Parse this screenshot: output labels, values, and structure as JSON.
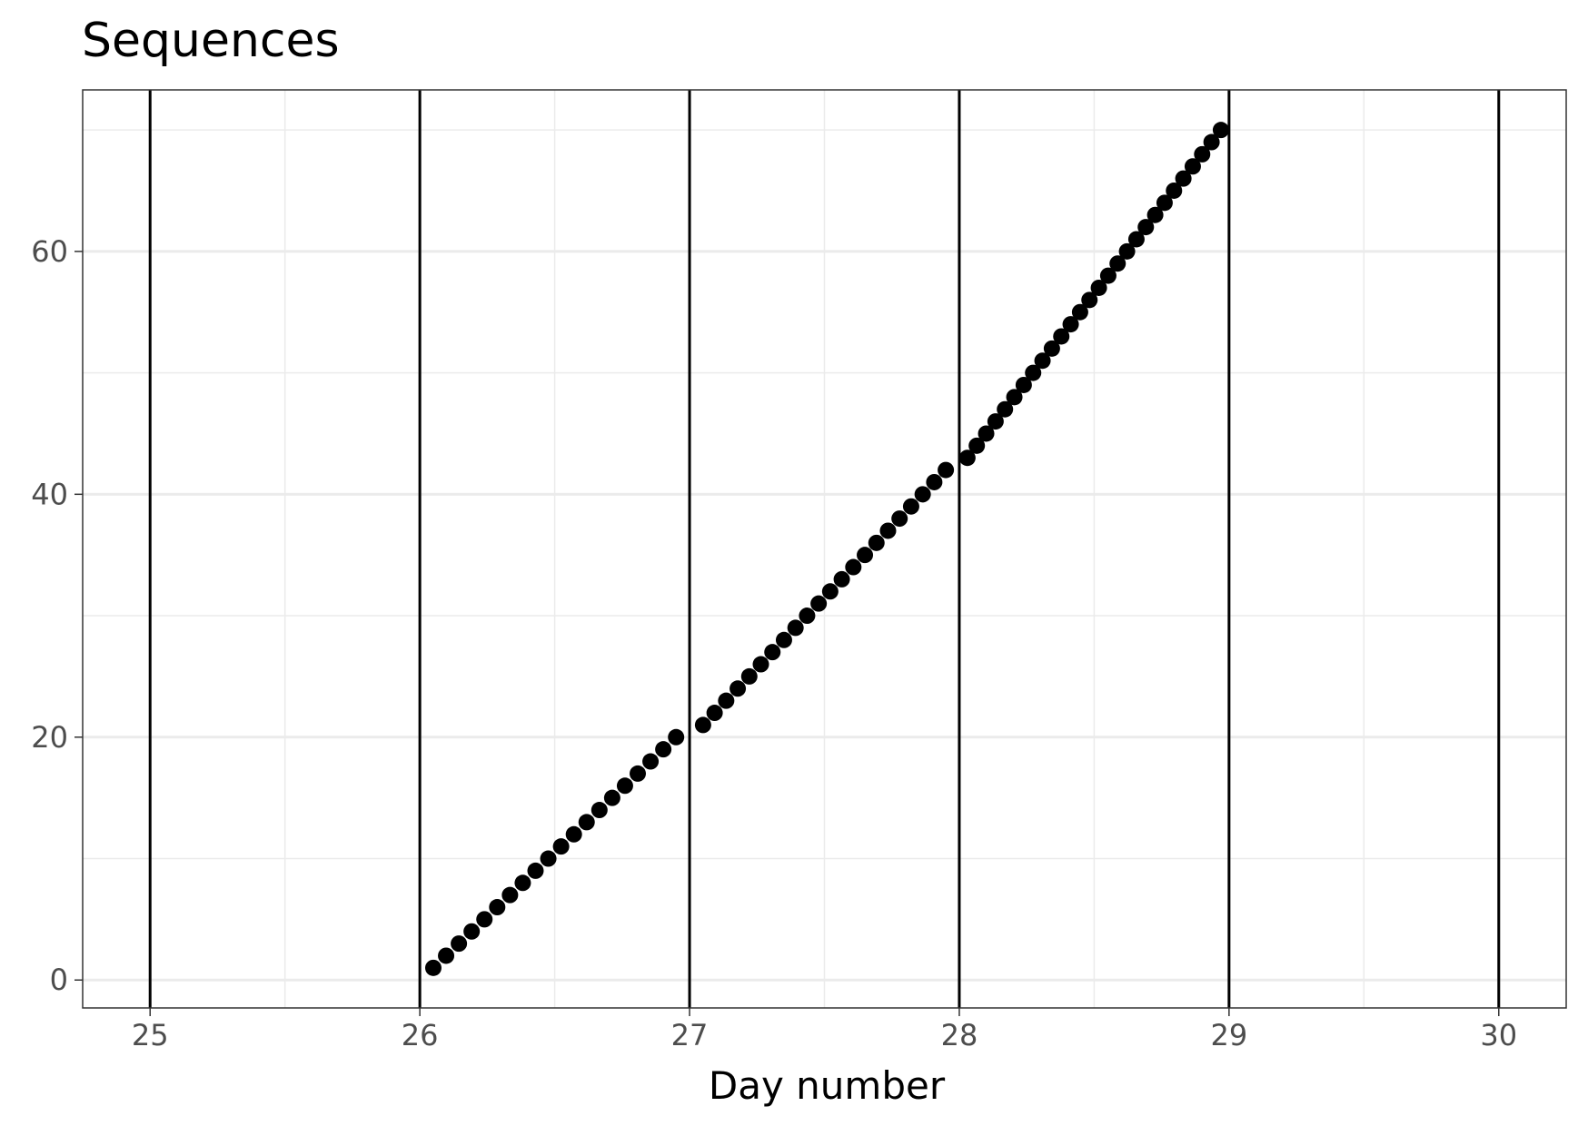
{
  "chart_data": {
    "type": "scatter",
    "title": "Sequences",
    "xlabel": "Day number",
    "ylabel": "",
    "xlim": [
      24.75,
      30.25
    ],
    "ylim": [
      -2.3,
      73.3
    ],
    "x_ticks": [
      25,
      26,
      27,
      28,
      29,
      30
    ],
    "y_ticks": [
      0,
      20,
      40,
      60
    ],
    "x_minor_ticks": [
      25.5,
      26.5,
      27.5,
      28.5,
      29.5
    ],
    "y_minor_ticks": [
      10,
      30,
      50,
      70
    ],
    "vertical_lines": [
      25,
      26,
      27,
      28,
      29,
      30
    ],
    "grid": true,
    "legend": "none",
    "point_color": "#000000",
    "series": [
      {
        "segments": [
          {
            "x_start": 26.05,
            "x_end": 26.95,
            "y_start": 1,
            "y_end": 20
          },
          {
            "x_start": 27.05,
            "x_end": 27.95,
            "y_start": 21,
            "y_end": 42
          },
          {
            "x_start": 28.03,
            "x_end": 28.97,
            "y_start": 43,
            "y_end": 70
          }
        ]
      }
    ]
  }
}
